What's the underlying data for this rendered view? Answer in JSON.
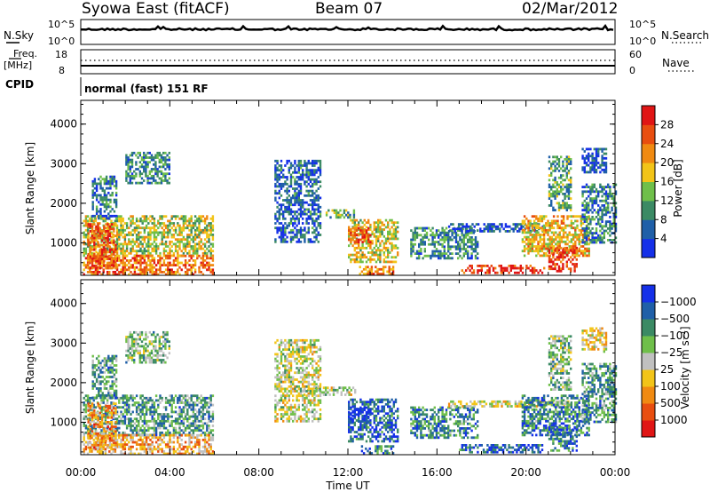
{
  "header": {
    "station": "Syowa East (fitACF)",
    "beam": "Beam 07",
    "date": "02/Mar/2012"
  },
  "noise_panel": {
    "left_label": "N.Sky",
    "left_ticks": [
      "10^5",
      "10^0"
    ],
    "right_label": "N.Search",
    "right_ticks": [
      "10^5",
      "10^0"
    ]
  },
  "freq_panel": {
    "left_label_line1": "Freq.",
    "left_label_line2": "[MHz]",
    "left_ticks": [
      "18",
      "8"
    ],
    "right_label": "Nave",
    "right_ticks": [
      "60",
      "0"
    ]
  },
  "cpid_panel": {
    "label": "CPID",
    "mode_text": "normal (fast) 151 RF"
  },
  "x_axis": {
    "label": "Time UT",
    "ticks": [
      "00:00",
      "04:00",
      "08:00",
      "12:00",
      "16:00",
      "20:00",
      "00:00"
    ]
  },
  "chart_data": [
    {
      "type": "heatmap",
      "title": "Power",
      "ylabel": "Slant Range [km]",
      "xlabel": "",
      "xlim": [
        0,
        24
      ],
      "ylim": [
        180,
        4600
      ],
      "y_ticks": [
        "1000",
        "2000",
        "3000",
        "4000"
      ],
      "colorbar": {
        "label": "Power [dB]",
        "tick_labels": [
          "4",
          "8",
          "12",
          "16",
          "20",
          "24",
          "28"
        ],
        "colors": [
          "#1530e8",
          "#1f5fa8",
          "#3b8a64",
          "#6fbf4a",
          "#f2c418",
          "#f08a12",
          "#e84e10",
          "#e01515"
        ]
      },
      "regions": [
        {
          "t": [
            0.1,
            5.9
          ],
          "r": [
            700,
            1700
          ],
          "level": 0.5
        },
        {
          "t": [
            0.1,
            5.9
          ],
          "r": [
            230,
            700
          ],
          "level": 0.75
        },
        {
          "t": [
            0.3,
            1.6
          ],
          "r": [
            350,
            1500
          ],
          "level": 0.8
        },
        {
          "t": [
            0.5,
            1.6
          ],
          "r": [
            1600,
            2700
          ],
          "level": 0.25
        },
        {
          "t": [
            2.0,
            4.0
          ],
          "r": [
            2500,
            3300
          ],
          "level": 0.3
        },
        {
          "t": [
            11.0,
            12.3
          ],
          "r": [
            1650,
            1850
          ],
          "level": 0.35
        },
        {
          "t": [
            12.0,
            14.2
          ],
          "r": [
            500,
            1600
          ],
          "level": 0.55
        },
        {
          "t": [
            12.0,
            13.0
          ],
          "r": [
            1000,
            1400
          ],
          "level": 0.85
        },
        {
          "t": [
            12.5,
            14.0
          ],
          "r": [
            230,
            420
          ],
          "level": 0.7
        },
        {
          "t": [
            14.8,
            17.8
          ],
          "r": [
            600,
            1400
          ],
          "level": 0.3
        },
        {
          "t": [
            17.0,
            20.8
          ],
          "r": [
            230,
            450
          ],
          "level": 0.9
        },
        {
          "t": [
            16.5,
            20.8
          ],
          "r": [
            1300,
            1500
          ],
          "level": 0.15
        },
        {
          "t": [
            19.8,
            22.8
          ],
          "r": [
            700,
            1700
          ],
          "level": 0.6
        },
        {
          "t": [
            21.0,
            22.3
          ],
          "r": [
            300,
            900
          ],
          "level": 0.85
        },
        {
          "t": [
            21.0,
            22.0
          ],
          "r": [
            1800,
            3200
          ],
          "level": 0.35
        },
        {
          "t": [
            22.5,
            24.0
          ],
          "r": [
            1000,
            2500
          ],
          "level": 0.25
        },
        {
          "t": [
            22.5,
            23.6
          ],
          "r": [
            2800,
            3400
          ],
          "level": 0.15
        },
        {
          "t": [
            8.7,
            10.8
          ],
          "r": [
            1000,
            3100
          ],
          "level": 0.2
        }
      ]
    },
    {
      "type": "heatmap",
      "title": "Velocity",
      "ylabel": "Slant Range [km]",
      "xlabel": "Time UT",
      "xlim": [
        0,
        24
      ],
      "ylim": [
        180,
        4600
      ],
      "y_ticks": [
        "1000",
        "2000",
        "3000",
        "4000"
      ],
      "colorbar": {
        "label": "Velocity [m s⁻¹]",
        "tick_labels": [
          "1000",
          "500",
          "100",
          "25",
          "−25",
          "−100",
          "−500",
          "−1000"
        ],
        "colors": [
          "#e01515",
          "#e84e10",
          "#f08a12",
          "#f2c418",
          "#c0c0c0",
          "#6fbf4a",
          "#3b8a64",
          "#1f5fa8",
          "#1530e8"
        ]
      },
      "regions": [
        {
          "t": [
            0.1,
            5.9
          ],
          "r": [
            700,
            1700
          ],
          "level": 0.7
        },
        {
          "t": [
            0.1,
            5.9
          ],
          "r": [
            230,
            700
          ],
          "level": 0.35
        },
        {
          "t": [
            0.3,
            1.6
          ],
          "r": [
            350,
            1500
          ],
          "level": 0.3
        },
        {
          "t": [
            0.5,
            1.6
          ],
          "r": [
            1600,
            2700
          ],
          "level": 0.7
        },
        {
          "t": [
            2.0,
            4.0
          ],
          "r": [
            2500,
            3300
          ],
          "level": 0.6
        },
        {
          "t": [
            10.0,
            12.3
          ],
          "r": [
            1700,
            1900
          ],
          "level": 0.5
        },
        {
          "t": [
            12.0,
            14.2
          ],
          "r": [
            500,
            1600
          ],
          "level": 0.85
        },
        {
          "t": [
            12.0,
            13.0
          ],
          "r": [
            1000,
            1400
          ],
          "level": 0.98
        },
        {
          "t": [
            12.5,
            14.0
          ],
          "r": [
            230,
            420
          ],
          "level": 0.75
        },
        {
          "t": [
            14.8,
            17.8
          ],
          "r": [
            600,
            1400
          ],
          "level": 0.75
        },
        {
          "t": [
            17.0,
            20.8
          ],
          "r": [
            230,
            450
          ],
          "level": 0.85
        },
        {
          "t": [
            16.5,
            22.0
          ],
          "r": [
            1400,
            1550
          ],
          "level": 0.48
        },
        {
          "t": [
            19.8,
            22.8
          ],
          "r": [
            700,
            1700
          ],
          "level": 0.75
        },
        {
          "t": [
            21.0,
            22.3
          ],
          "r": [
            300,
            900
          ],
          "level": 0.8
        },
        {
          "t": [
            21.0,
            22.0
          ],
          "r": [
            1800,
            3200
          ],
          "level": 0.6
        },
        {
          "t": [
            22.5,
            24.0
          ],
          "r": [
            1000,
            2500
          ],
          "level": 0.7
        },
        {
          "t": [
            22.5,
            23.6
          ],
          "r": [
            2800,
            3400
          ],
          "level": 0.45
        },
        {
          "t": [
            8.7,
            10.8
          ],
          "r": [
            1000,
            3100
          ],
          "level": 0.5
        }
      ]
    }
  ]
}
